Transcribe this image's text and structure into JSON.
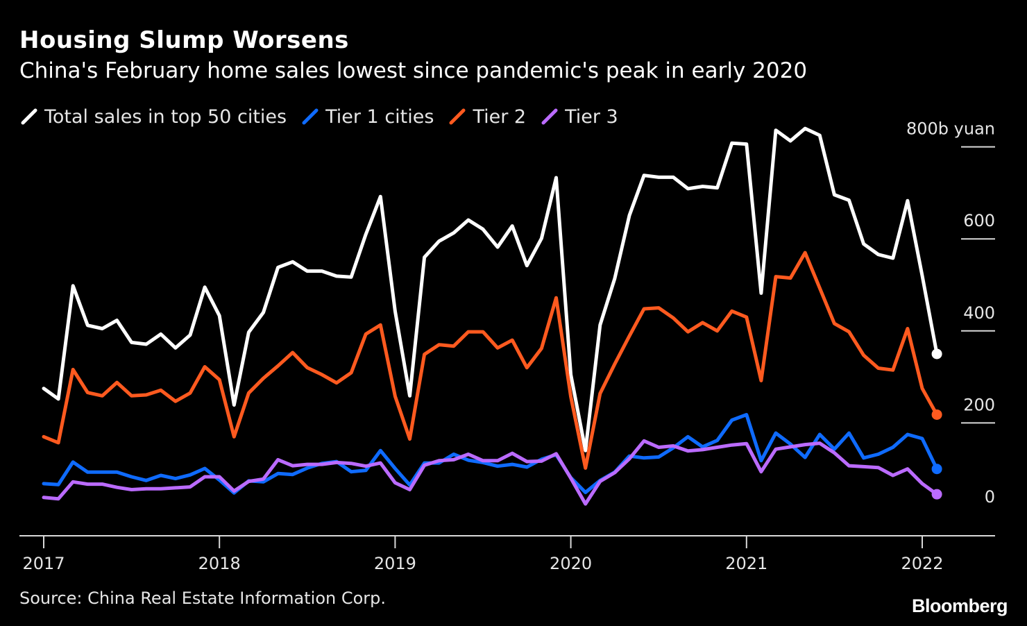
{
  "header": {
    "title": "Housing Slump Worsens",
    "subtitle": "China's February home sales lowest since pandemic's peak in early 2020"
  },
  "footer": {
    "source": "Source: China Real Estate Information Corp.",
    "brand": "Bloomberg"
  },
  "chart_data": {
    "type": "line",
    "title": "Housing Slump Worsens",
    "subtitle": "China's February home sales lowest since pandemic's peak in early 2020",
    "x_start": "2017-01",
    "x_step": "month",
    "x_tick_labels": [
      "2017",
      "2018",
      "2019",
      "2020",
      "2021",
      "2022"
    ],
    "y_tick_labels": [
      "0",
      "200",
      "400",
      "600",
      "800b yuan"
    ],
    "y_ticks": [
      0,
      200,
      400,
      600,
      800
    ],
    "ylim": [
      -40,
      830
    ],
    "legend_position": "top-left",
    "grid": false,
    "end_markers": true,
    "series": [
      {
        "name": "Total sales in top 50 cities",
        "color": "#ffffff",
        "values": [
          275,
          252,
          498,
          412,
          405,
          423,
          375,
          371,
          393,
          363,
          391,
          495,
          433,
          239,
          397,
          440,
          538,
          550,
          530,
          530,
          519,
          517,
          610,
          692,
          443,
          259,
          560,
          595,
          613,
          641,
          621,
          582,
          628,
          542,
          601,
          733,
          305,
          140,
          413,
          514,
          651,
          738,
          734,
          734,
          709,
          714,
          711,
          808,
          806,
          482,
          836,
          813,
          840,
          825,
          696,
          684,
          589,
          566,
          558,
          683,
          520,
          350
        ]
      },
      {
        "name": "Tier 1 cities",
        "color": "#0f6bff",
        "values": [
          68,
          66,
          115,
          93,
          93,
          93,
          83,
          75,
          86,
          79,
          87,
          101,
          76,
          48,
          74,
          72,
          90,
          88,
          102,
          112,
          116,
          94,
          97,
          140,
          101,
          65,
          113,
          113,
          132,
          119,
          114,
          106,
          110,
          104,
          121,
          131,
          81,
          49,
          75,
          93,
          128,
          124,
          126,
          146,
          170,
          148,
          162,
          206,
          218,
          118,
          178,
          154,
          125,
          175,
          143,
          178,
          124,
          132,
          147,
          175,
          166,
          100
        ]
      },
      {
        "name": "Tier 2",
        "color": "#ff5a1f",
        "values": [
          170,
          157,
          316,
          266,
          259,
          288,
          259,
          261,
          271,
          247,
          265,
          322,
          294,
          170,
          265,
          297,
          324,
          353,
          320,
          305,
          287,
          309,
          393,
          413,
          258,
          165,
          349,
          370,
          367,
          398,
          398,
          363,
          380,
          320,
          362,
          472,
          257,
          102,
          264,
          328,
          389,
          448,
          450,
          428,
          398,
          418,
          400,
          443,
          430,
          292,
          518,
          515,
          570,
          493,
          416,
          398,
          347,
          319,
          315,
          405,
          275,
          218
        ]
      },
      {
        "name": "Tier 3",
        "color": "#bb6bff",
        "values": [
          38,
          35,
          72,
          67,
          67,
          60,
          55,
          57,
          57,
          59,
          61,
          83,
          83,
          52,
          73,
          78,
          120,
          107,
          110,
          110,
          114,
          112,
          106,
          113,
          70,
          55,
          108,
          118,
          120,
          132,
          118,
          118,
          134,
          116,
          117,
          133,
          80,
          24,
          73,
          92,
          122,
          161,
          147,
          150,
          139,
          142,
          147,
          152,
          155,
          94,
          143,
          148,
          153,
          156,
          135,
          107,
          105,
          103,
          86,
          100,
          68,
          45
        ]
      }
    ]
  }
}
